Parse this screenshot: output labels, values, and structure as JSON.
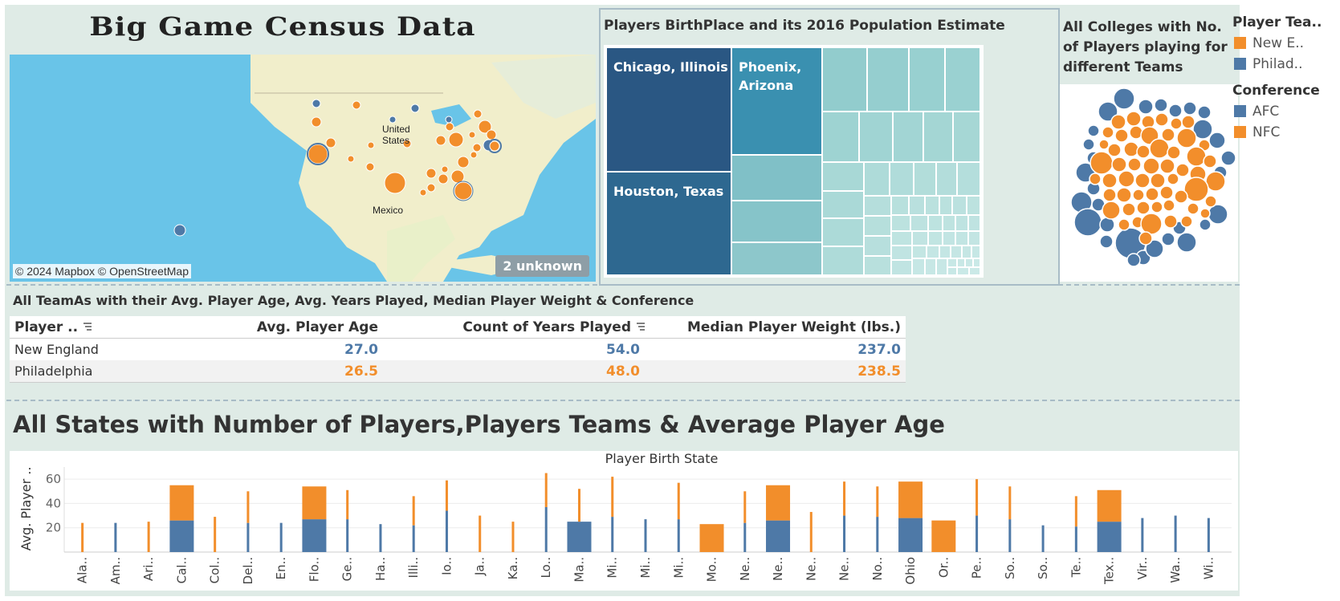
{
  "dashboard": {
    "title": "Big Game Census Data"
  },
  "map": {
    "credit": "© 2024 Mapbox © OpenStreetMap",
    "unknown_badge": "2 unknown",
    "label_us": "United\nStates",
    "label_mexico": "Mexico"
  },
  "treemap": {
    "title": "Players BirthPlace and its 2016 Population Estimate",
    "labeled_cells": [
      "Chicago, Illinois",
      "Phoenix, Arizona",
      "Houston, Texas"
    ]
  },
  "bubbles": {
    "title": "All Colleges with No. of Players playing for different Teams"
  },
  "legend": {
    "team_title": "Player Tea..",
    "teams": [
      {
        "label": "New E..",
        "color": "#f28e2b"
      },
      {
        "label": "Philad..",
        "color": "#4e79a7"
      }
    ],
    "conference_title": "Conference",
    "conferences": [
      {
        "label": "AFC",
        "color": "#4e79a7"
      },
      {
        "label": "NFC",
        "color": "#f28e2b"
      }
    ]
  },
  "table": {
    "title": "All TeamAs with their Avg. Player Age, Avg. Years Played, Median Player Weight & Conference",
    "headers": [
      "Player ..",
      "Avg. Player Age",
      "Count of Years Played",
      "Median Player Weight (lbs.)"
    ],
    "rows": [
      {
        "team": "New England",
        "age": "27.0",
        "years": "54.0",
        "weight": "237.0",
        "color": "#4e79a7"
      },
      {
        "team": "Philadelphia",
        "age": "26.5",
        "years": "48.0",
        "weight": "238.5",
        "color": "#f28e2b"
      }
    ]
  },
  "bar_section": {
    "title": "All States with Number of Players,Players Teams & Average Player Age"
  },
  "chart_data": {
    "type": "bar",
    "title": "Player Birth State",
    "ylabel": "Avg. Player ..",
    "yticks": [
      20,
      40,
      60
    ],
    "ylim": [
      0,
      70
    ],
    "grid": true,
    "categories": [
      "Ala..",
      "Am..",
      "Ari..",
      "Cal..",
      "Col..",
      "Del..",
      "En..",
      "Flo..",
      "Ge..",
      "Ha..",
      "Illi..",
      "Io..",
      "Ja..",
      "Ka..",
      "Lo..",
      "Ma..",
      "Mi..",
      "Mi..",
      "Mi..",
      "Mo..",
      "Ne..",
      "Ne..",
      "Ne..",
      "Ne..",
      "No..",
      "Ohio",
      "Or..",
      "Pe..",
      "So..",
      "So..",
      "Te..",
      "Tex..",
      "Vir..",
      "Wa..",
      "Wi.."
    ],
    "series": [
      {
        "name": "AFC",
        "color": "#4e79a7",
        "values": [
          0,
          24,
          0,
          26,
          0,
          24,
          24,
          27,
          27,
          23,
          22,
          34,
          0,
          0,
          37,
          25,
          29,
          27,
          27,
          0,
          24,
          26,
          0,
          30,
          29,
          28,
          0,
          30,
          27,
          22,
          21,
          25,
          28,
          30,
          28
        ],
        "wide": [
          false,
          false,
          false,
          true,
          false,
          false,
          false,
          true,
          false,
          false,
          false,
          false,
          false,
          false,
          false,
          true,
          false,
          false,
          false,
          false,
          false,
          true,
          false,
          false,
          false,
          true,
          false,
          false,
          false,
          false,
          false,
          true,
          false,
          false,
          false
        ]
      },
      {
        "name": "NFC",
        "color": "#f28e2b",
        "values": [
          24,
          0,
          25,
          29,
          29,
          26,
          0,
          27,
          24,
          0,
          24,
          25,
          30,
          25,
          28,
          27,
          33,
          0,
          30,
          23,
          26,
          29,
          33,
          28,
          25,
          30,
          26,
          30,
          27,
          0,
          25,
          26,
          0,
          0,
          0
        ],
        "wide": [
          false,
          false,
          false,
          true,
          false,
          false,
          false,
          true,
          false,
          false,
          false,
          false,
          false,
          false,
          false,
          false,
          false,
          false,
          false,
          true,
          false,
          true,
          false,
          false,
          false,
          true,
          true,
          false,
          false,
          false,
          false,
          true,
          false,
          false,
          false
        ]
      }
    ]
  }
}
